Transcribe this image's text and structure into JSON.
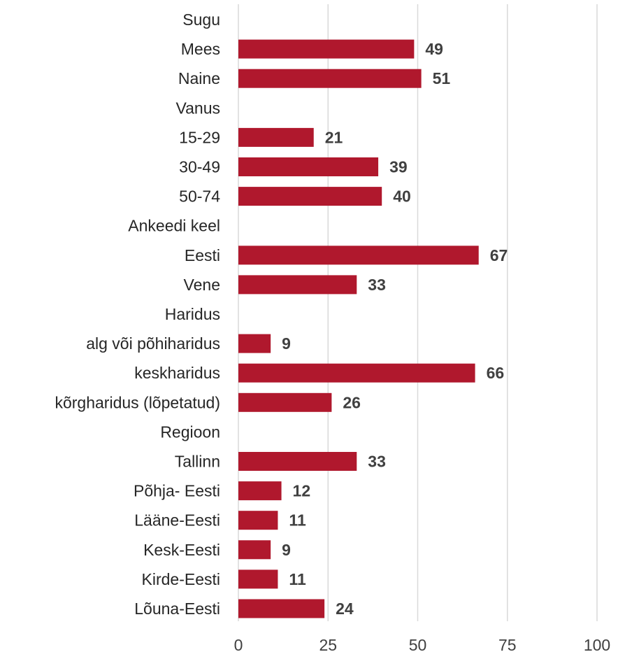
{
  "chart_data": {
    "type": "bar",
    "orientation": "horizontal",
    "categories": [
      "Sugu",
      "Mees",
      "Naine",
      "Vanus",
      "15-29",
      "30-49",
      "50-74",
      "Ankeedi keel",
      "Eesti",
      "Vene",
      "Haridus",
      "alg või põhiharidus",
      "keskharidus",
      "kõrgharidus (lõpetatud)",
      "Regioon",
      "Tallinn",
      "Põhja- Eesti",
      "Lääne-Eesti",
      "Kesk-Eesti",
      "Kirde-Eesti",
      "Lõuna-Eesti"
    ],
    "values": [
      null,
      49,
      51,
      null,
      21,
      39,
      40,
      null,
      67,
      33,
      null,
      9,
      66,
      26,
      null,
      33,
      12,
      11,
      9,
      11,
      24
    ],
    "xlim": [
      0,
      100
    ],
    "xticks": [
      0,
      25,
      50,
      75,
      100
    ],
    "grid": "vertical",
    "data_labels": true,
    "title": "",
    "xlabel": "",
    "ylabel": "",
    "bar_color": "#b0182d"
  }
}
